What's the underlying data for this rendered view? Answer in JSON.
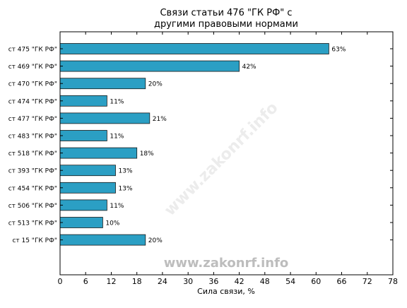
{
  "chart_data": {
    "type": "bar",
    "orientation": "horizontal",
    "title_line1": "Связи статьи 476 \"ГК РФ\" с",
    "title_line2": "другими правовыми нормами",
    "xlabel": "Сила связи, %",
    "ylabel": "",
    "xlim": [
      0,
      78
    ],
    "xticks": [
      0,
      6,
      12,
      18,
      24,
      30,
      36,
      42,
      48,
      54,
      60,
      66,
      72,
      78
    ],
    "categories": [
      "ст 475 \"ГК РФ\"",
      "ст 469 \"ГК РФ\"",
      "ст 470 \"ГК РФ\"",
      "ст 474 \"ГК РФ\"",
      "ст 477 \"ГК РФ\"",
      "ст 483 \"ГК РФ\"",
      "ст 518 \"ГК РФ\"",
      "ст 393 \"ГК РФ\"",
      "ст 454 \"ГК РФ\"",
      "ст 506 \"ГК РФ\"",
      "ст 513 \"ГК РФ\"",
      "ст 15 \"ГК РФ\""
    ],
    "values": [
      63,
      42,
      20,
      11,
      21,
      11,
      18,
      13,
      13,
      11,
      10,
      20
    ],
    "value_labels": [
      "63%",
      "42%",
      "20%",
      "11%",
      "21%",
      "11%",
      "18%",
      "13%",
      "13%",
      "11%",
      "10%",
      "20%"
    ],
    "bar_color": "#2b9fc4",
    "bar_edge_color": "#1a1a1a",
    "grid": false,
    "legend": false
  },
  "watermark": {
    "main": "www.zakonrf.info",
    "diagonal": "www.zakonrf.info"
  }
}
